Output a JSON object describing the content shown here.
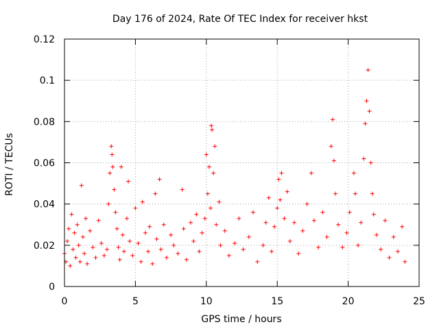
{
  "chart_data": {
    "type": "scatter",
    "title": "Day 176 of 2024, Rate Of TEC Index for receiver hkst",
    "xlabel": "GPS time / hours",
    "ylabel": "ROTI / TECUs",
    "xlim": [
      0,
      25
    ],
    "ylim": [
      0,
      0.12
    ],
    "xticks": [
      0,
      5,
      10,
      15,
      20,
      25
    ],
    "xtick_labels": [
      "0",
      "5",
      "10",
      "15",
      "20",
      "25"
    ],
    "yticks": [
      0,
      0.02,
      0.04,
      0.06,
      0.08,
      0.1,
      0.12
    ],
    "ytick_labels": [
      "0",
      "0.02",
      "0.04",
      "0.06",
      "0.08",
      "0.1",
      "0.12"
    ],
    "grid": true,
    "marker": "+",
    "color": "#ff0000",
    "series": [
      {
        "name": "ROTI",
        "points": [
          [
            0.0,
            0.016
          ],
          [
            0.1,
            0.012
          ],
          [
            0.2,
            0.022
          ],
          [
            0.3,
            0.028
          ],
          [
            0.4,
            0.01
          ],
          [
            0.5,
            0.035
          ],
          [
            0.6,
            0.018
          ],
          [
            0.7,
            0.026
          ],
          [
            0.8,
            0.014
          ],
          [
            0.9,
            0.03
          ],
          [
            1.0,
            0.02
          ],
          [
            1.1,
            0.012
          ],
          [
            1.2,
            0.049
          ],
          [
            1.3,
            0.024
          ],
          [
            1.4,
            0.016
          ],
          [
            1.5,
            0.033
          ],
          [
            1.6,
            0.011
          ],
          [
            1.8,
            0.027
          ],
          [
            2.0,
            0.019
          ],
          [
            2.2,
            0.014
          ],
          [
            2.4,
            0.032
          ],
          [
            2.6,
            0.021
          ],
          [
            2.8,
            0.015
          ],
          [
            3.0,
            0.018
          ],
          [
            3.1,
            0.04
          ],
          [
            3.2,
            0.055
          ],
          [
            3.3,
            0.068
          ],
          [
            3.35,
            0.064
          ],
          [
            3.4,
            0.058
          ],
          [
            3.5,
            0.047
          ],
          [
            3.6,
            0.036
          ],
          [
            3.7,
            0.028
          ],
          [
            3.8,
            0.019
          ],
          [
            3.9,
            0.013
          ],
          [
            4.0,
            0.058
          ],
          [
            4.1,
            0.025
          ],
          [
            4.2,
            0.017
          ],
          [
            4.4,
            0.033
          ],
          [
            4.5,
            0.051
          ],
          [
            4.6,
            0.022
          ],
          [
            4.8,
            0.015
          ],
          [
            5.0,
            0.038
          ],
          [
            5.2,
            0.021
          ],
          [
            5.4,
            0.012
          ],
          [
            5.5,
            0.041
          ],
          [
            5.7,
            0.026
          ],
          [
            5.9,
            0.017
          ],
          [
            6.0,
            0.029
          ],
          [
            6.2,
            0.011
          ],
          [
            6.4,
            0.045
          ],
          [
            6.5,
            0.023
          ],
          [
            6.7,
            0.052
          ],
          [
            6.8,
            0.018
          ],
          [
            7.0,
            0.03
          ],
          [
            7.2,
            0.014
          ],
          [
            7.5,
            0.025
          ],
          [
            7.7,
            0.02
          ],
          [
            8.0,
            0.016
          ],
          [
            8.3,
            0.047
          ],
          [
            8.4,
            0.028
          ],
          [
            8.6,
            0.013
          ],
          [
            8.9,
            0.031
          ],
          [
            9.1,
            0.022
          ],
          [
            9.3,
            0.035
          ],
          [
            9.5,
            0.017
          ],
          [
            9.7,
            0.026
          ],
          [
            9.9,
            0.033
          ],
          [
            10.0,
            0.064
          ],
          [
            10.1,
            0.045
          ],
          [
            10.2,
            0.058
          ],
          [
            10.3,
            0.038
          ],
          [
            10.35,
            0.078
          ],
          [
            10.4,
            0.076
          ],
          [
            10.5,
            0.055
          ],
          [
            10.6,
            0.068
          ],
          [
            10.7,
            0.03
          ],
          [
            10.9,
            0.041
          ],
          [
            11.0,
            0.02
          ],
          [
            11.3,
            0.027
          ],
          [
            11.6,
            0.015
          ],
          [
            12.0,
            0.021
          ],
          [
            12.3,
            0.033
          ],
          [
            12.6,
            0.018
          ],
          [
            13.0,
            0.024
          ],
          [
            13.3,
            0.036
          ],
          [
            13.6,
            0.012
          ],
          [
            14.0,
            0.02
          ],
          [
            14.2,
            0.031
          ],
          [
            14.4,
            0.043
          ],
          [
            14.6,
            0.017
          ],
          [
            14.8,
            0.029
          ],
          [
            15.0,
            0.038
          ],
          [
            15.1,
            0.052
          ],
          [
            15.2,
            0.042
          ],
          [
            15.3,
            0.055
          ],
          [
            15.5,
            0.033
          ],
          [
            15.7,
            0.046
          ],
          [
            15.9,
            0.022
          ],
          [
            16.2,
            0.031
          ],
          [
            16.5,
            0.016
          ],
          [
            16.8,
            0.027
          ],
          [
            17.1,
            0.04
          ],
          [
            17.4,
            0.055
          ],
          [
            17.6,
            0.032
          ],
          [
            17.9,
            0.019
          ],
          [
            18.2,
            0.036
          ],
          [
            18.5,
            0.024
          ],
          [
            18.8,
            0.068
          ],
          [
            18.9,
            0.081
          ],
          [
            19.0,
            0.061
          ],
          [
            19.1,
            0.045
          ],
          [
            19.3,
            0.03
          ],
          [
            19.6,
            0.019
          ],
          [
            19.9,
            0.026
          ],
          [
            20.1,
            0.036
          ],
          [
            20.4,
            0.055
          ],
          [
            20.5,
            0.045
          ],
          [
            20.7,
            0.02
          ],
          [
            20.9,
            0.031
          ],
          [
            21.1,
            0.062
          ],
          [
            21.2,
            0.079
          ],
          [
            21.3,
            0.09
          ],
          [
            21.4,
            0.105
          ],
          [
            21.5,
            0.085
          ],
          [
            21.6,
            0.06
          ],
          [
            21.7,
            0.045
          ],
          [
            21.8,
            0.035
          ],
          [
            22.0,
            0.025
          ],
          [
            22.3,
            0.018
          ],
          [
            22.6,
            0.032
          ],
          [
            22.9,
            0.014
          ],
          [
            23.2,
            0.024
          ],
          [
            23.5,
            0.017
          ],
          [
            23.8,
            0.029
          ],
          [
            24.0,
            0.012
          ]
        ]
      }
    ]
  }
}
